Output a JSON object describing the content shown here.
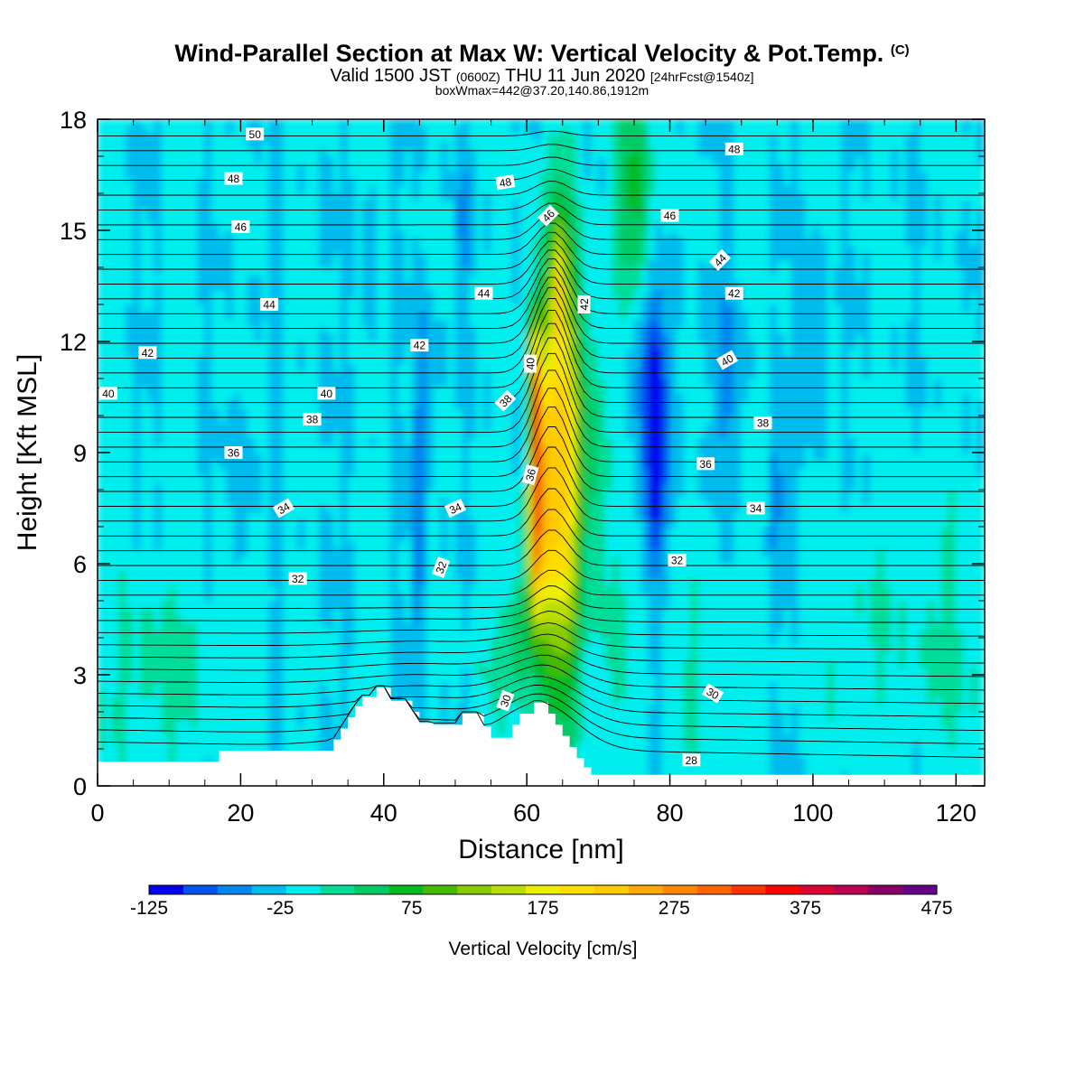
{
  "title": {
    "main": "Wind-Parallel Section at Max W: Vertical Velocity & Pot.Temp.",
    "copyright": "(C)",
    "valid_prefix": "Valid 1500 JST",
    "valid_utc": "(0600Z)",
    "valid_date": "THU 11 Jun 2020",
    "forecast": "[24hrFcst@1540z]",
    "box_info": "boxWmax=442@37.20,140.86,1912m"
  },
  "chart_data": {
    "type": "heatmap",
    "xlabel": "Distance [nm]",
    "ylabel": "Height [Kft MSL]",
    "xlim": [
      0,
      124
    ],
    "ylim": [
      0,
      18
    ],
    "x_ticks": [
      "0",
      "20",
      "40",
      "60",
      "80",
      "100",
      "120"
    ],
    "y_ticks": [
      "0",
      "3",
      "6",
      "9",
      "12",
      "15",
      "18"
    ],
    "colorbar": {
      "label": "Vertical Velocity [cm/s]",
      "tick_labels": [
        "-125",
        "-25",
        "75",
        "175",
        "275",
        "375",
        "475"
      ],
      "min": -125,
      "max": 475,
      "step": 25,
      "colors": [
        "#0000ee",
        "#0055ee",
        "#0088ee",
        "#00bbee",
        "#00eeee",
        "#00dd99",
        "#00cc66",
        "#00bb22",
        "#44bb00",
        "#88cc00",
        "#bbdd00",
        "#eeee00",
        "#ffdd00",
        "#ffcc00",
        "#ffaa00",
        "#ff8800",
        "#ff6600",
        "#ff3300",
        "#ff0000",
        "#dd0033",
        "#bb0055",
        "#880066",
        "#660088"
      ]
    },
    "field_max_vertical_velocity": {
      "value": 442,
      "lat": 37.2,
      "lon": 140.86,
      "height_m": 1912
    },
    "vertical_velocity_features": [
      {
        "name": "main updraft core",
        "x": 61,
        "height_kft": [
          2.5,
          13
        ],
        "peak": 442
      },
      {
        "name": "updraft band",
        "x": 65,
        "height_kft": [
          1,
          15
        ],
        "peak": 325
      },
      {
        "name": "downdraft core",
        "x": 78,
        "height_kft": [
          6,
          12
        ],
        "peak": -110
      },
      {
        "name": "weak downdraft",
        "x": 45,
        "height_kft": [
          2,
          14
        ],
        "peak": -60
      },
      {
        "name": "weak downdraft",
        "x": 20,
        "height_kft": [
          5,
          12
        ],
        "peak": -40
      }
    ],
    "terrain_profile": [
      [
        0,
        0.65
      ],
      [
        17,
        0.65
      ],
      [
        17,
        0.95
      ],
      [
        33,
        0.95
      ],
      [
        33,
        1.25
      ],
      [
        34,
        1.25
      ],
      [
        34,
        1.55
      ],
      [
        35,
        1.55
      ],
      [
        35,
        1.85
      ],
      [
        36,
        1.85
      ],
      [
        36,
        2.15
      ],
      [
        37,
        2.15
      ],
      [
        37,
        2.4
      ],
      [
        39,
        2.4
      ],
      [
        39,
        2.65
      ],
      [
        41,
        2.65
      ],
      [
        41,
        2.3
      ],
      [
        44,
        2.3
      ],
      [
        44,
        2.0
      ],
      [
        45,
        2.0
      ],
      [
        45,
        1.7
      ],
      [
        47,
        1.7
      ],
      [
        47,
        1.65
      ],
      [
        51,
        1.65
      ],
      [
        51,
        1.95
      ],
      [
        54,
        1.95
      ],
      [
        54,
        1.6
      ],
      [
        55,
        1.6
      ],
      [
        55,
        1.3
      ],
      [
        58,
        1.3
      ],
      [
        58,
        1.65
      ],
      [
        59,
        1.65
      ],
      [
        59,
        1.95
      ],
      [
        61,
        1.95
      ],
      [
        61,
        2.25
      ],
      [
        63,
        2.25
      ],
      [
        63,
        1.95
      ],
      [
        64,
        1.95
      ],
      [
        64,
        1.65
      ],
      [
        65,
        1.65
      ],
      [
        65,
        1.35
      ],
      [
        66,
        1.35
      ],
      [
        66,
        1.05
      ],
      [
        67,
        1.05
      ],
      [
        67,
        0.75
      ],
      [
        68,
        0.75
      ],
      [
        68,
        0.5
      ],
      [
        69,
        0.5
      ],
      [
        69,
        0.3
      ],
      [
        124,
        0.3
      ]
    ],
    "pot_temp_contour_labels": [
      "50",
      "48",
      "48",
      "48",
      "46",
      "46",
      "46",
      "44",
      "44",
      "44",
      "42",
      "42",
      "42",
      "42",
      "40",
      "40",
      "40",
      "40",
      "38",
      "38",
      "38",
      "36",
      "36",
      "36",
      "34",
      "34",
      "34",
      "32",
      "32",
      "32",
      "30",
      "30",
      "28"
    ]
  }
}
